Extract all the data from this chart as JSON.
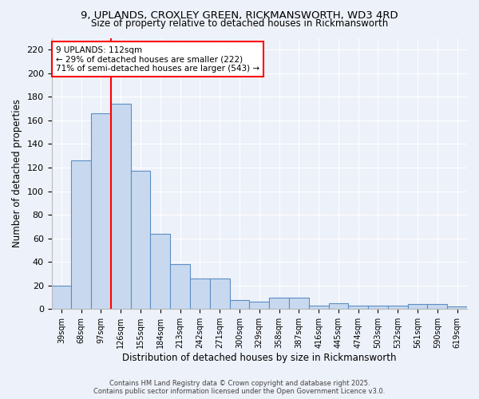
{
  "title_line1": "9, UPLANDS, CROXLEY GREEN, RICKMANSWORTH, WD3 4RD",
  "title_line2": "Size of property relative to detached houses in Rickmansworth",
  "xlabel": "Distribution of detached houses by size in Rickmansworth",
  "ylabel": "Number of detached properties",
  "bar_color": "#c8d9ef",
  "bar_edge_color": "#5b8ec4",
  "background_color": "#edf1f9",
  "grid_color": "#ffffff",
  "categories": [
    "39sqm",
    "68sqm",
    "97sqm",
    "126sqm",
    "155sqm",
    "184sqm",
    "213sqm",
    "242sqm",
    "271sqm",
    "300sqm",
    "329sqm",
    "358sqm",
    "387sqm",
    "416sqm",
    "445sqm",
    "474sqm",
    "503sqm",
    "532sqm",
    "561sqm",
    "590sqm",
    "619sqm"
  ],
  "values": [
    20,
    126,
    166,
    174,
    117,
    64,
    38,
    26,
    26,
    8,
    6,
    10,
    10,
    3,
    5,
    3,
    3,
    3,
    4,
    4,
    2
  ],
  "ylim": [
    0,
    230
  ],
  "yticks": [
    0,
    20,
    40,
    60,
    80,
    100,
    120,
    140,
    160,
    180,
    200,
    220
  ],
  "red_line_x": 2.5,
  "annotation_text": "9 UPLANDS: 112sqm\n← 29% of detached houses are smaller (222)\n71% of semi-detached houses are larger (543) →",
  "footer_line1": "Contains HM Land Registry data © Crown copyright and database right 2025.",
  "footer_line2": "Contains public sector information licensed under the Open Government Licence v3.0."
}
